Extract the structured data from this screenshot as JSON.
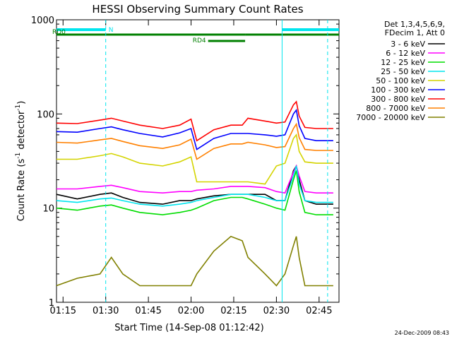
{
  "chart_data": {
    "type": "line",
    "title": "HESSI Observing Summary Count Rates",
    "xlabel": "Start Time (14-Sep-08 01:12:42)",
    "ylabel": "Count Rate (s",
    "ylabel_sup1": "-1",
    "ylabel_mid": " detector",
    "ylabel_sup2": "-1",
    "ylabel_end": ")",
    "yscale": "log",
    "xlim": [
      "01:12:42",
      "02:52:00"
    ],
    "ylim": [
      1,
      1000
    ],
    "x_ticks": [
      "01:15",
      "01:30",
      "01:45",
      "02:00",
      "02:15",
      "02:30",
      "02:45"
    ],
    "y_ticks": [
      "1",
      "10",
      "100",
      "1000"
    ],
    "legend_header": [
      "Det 1,3,4,5,6,9,",
      "FDecim 1, Att 0"
    ],
    "legend_position": "right",
    "timestamp": "24-Dec-2009 08:43",
    "x_times": [
      "01:12:42",
      "01:20:00",
      "01:28:00",
      "01:32:00",
      "01:36:00",
      "01:42:00",
      "01:50:00",
      "01:56:00",
      "02:00:00",
      "02:02:00",
      "02:08:00",
      "02:14:00",
      "02:18:00",
      "02:20:00",
      "02:26:00",
      "02:30:00",
      "02:33:00",
      "02:36:00",
      "02:37:00",
      "02:38:00",
      "02:40:00",
      "02:44:00",
      "02:50:00"
    ],
    "series": [
      {
        "name": "3 - 6 keV",
        "color": "#000000",
        "values": [
          14,
          12.5,
          14,
          14.5,
          13,
          11.5,
          11,
          12,
          12,
          12.5,
          13.5,
          14,
          14,
          14,
          14,
          12,
          12,
          25,
          28,
          20,
          12,
          11,
          11
        ]
      },
      {
        "name": "6 - 12 keV",
        "color": "#ff00ff",
        "values": [
          16,
          16,
          17,
          17.5,
          16.5,
          15,
          14.5,
          15,
          15,
          15.5,
          16,
          17,
          17,
          17,
          16.5,
          15,
          14.5,
          24,
          28,
          22,
          15,
          14.5,
          14.5
        ]
      },
      {
        "name": "12 - 25 keV",
        "color": "#00dd00",
        "values": [
          10,
          9.5,
          10.5,
          10.8,
          10,
          9,
          8.5,
          9,
          9.5,
          10,
          12,
          13,
          13,
          12.5,
          11,
          10,
          9.5,
          20,
          25,
          15,
          9,
          8.5,
          8.5
        ]
      },
      {
        "name": "25 - 50 keV",
        "color": "#00e5ee",
        "values": [
          12,
          11.5,
          12.5,
          12.8,
          12,
          11,
          10.5,
          11,
          11.5,
          12,
          13,
          14,
          14,
          14,
          13,
          12,
          12,
          22,
          28,
          18,
          12,
          11.5,
          11.5
        ]
      },
      {
        "name": "50 - 100 keV",
        "color": "#d4d400",
        "values": [
          33,
          33,
          36,
          38,
          35,
          30,
          28,
          31,
          35,
          19,
          19,
          19,
          19,
          19,
          18,
          28,
          30,
          55,
          60,
          40,
          31,
          30,
          30
        ]
      },
      {
        "name": "100 - 300 keV",
        "color": "#0000ff",
        "values": [
          65,
          64,
          70,
          73,
          68,
          62,
          57,
          63,
          70,
          42,
          55,
          62,
          62,
          62,
          60,
          58,
          60,
          100,
          110,
          75,
          55,
          52,
          52
        ]
      },
      {
        "name": "300 - 800 keV",
        "color": "#ff0000",
        "values": [
          80,
          79,
          86,
          90,
          84,
          76,
          70,
          76,
          88,
          52,
          68,
          76,
          76,
          90,
          84,
          80,
          82,
          125,
          135,
          95,
          72,
          70,
          70
        ]
      },
      {
        "name": "800 - 7000 keV",
        "color": "#ff8000",
        "values": [
          50,
          49,
          53,
          55,
          51,
          46,
          43,
          47,
          54,
          33,
          43,
          48,
          48,
          50,
          47,
          44,
          45,
          70,
          78,
          56,
          42,
          41,
          41
        ]
      },
      {
        "name": "7000 - 20000 keV",
        "color": "#808000",
        "values": [
          1.5,
          1.8,
          2,
          3,
          2,
          1.5,
          1.5,
          1.5,
          1.5,
          2,
          3.5,
          5,
          4.5,
          3,
          2,
          1.5,
          2,
          4,
          5,
          3,
          1.5,
          1.5,
          1.5
        ]
      }
    ],
    "attenuator_bars": [
      {
        "label": "N",
        "color": "#00e5ee",
        "segments": [
          [
            "01:12:42",
            "01:30:00"
          ],
          [
            "02:32:00",
            "02:52:00"
          ]
        ]
      }
    ],
    "rd_bars": [
      {
        "label": "RD0",
        "color": "#008000",
        "segments": [
          [
            "01:12:42",
            "02:19:00"
          ],
          [
            "02:19:00",
            "02:52:00"
          ]
        ]
      },
      {
        "label": "RD4",
        "color": "#008000",
        "segments": [
          [
            "02:06:00",
            "02:19:00"
          ]
        ]
      }
    ],
    "dashed_lines": [
      "01:30:00",
      "02:48:00"
    ],
    "solid_lines": [
      "02:32:00"
    ],
    "line_color": "#00e5ee"
  }
}
